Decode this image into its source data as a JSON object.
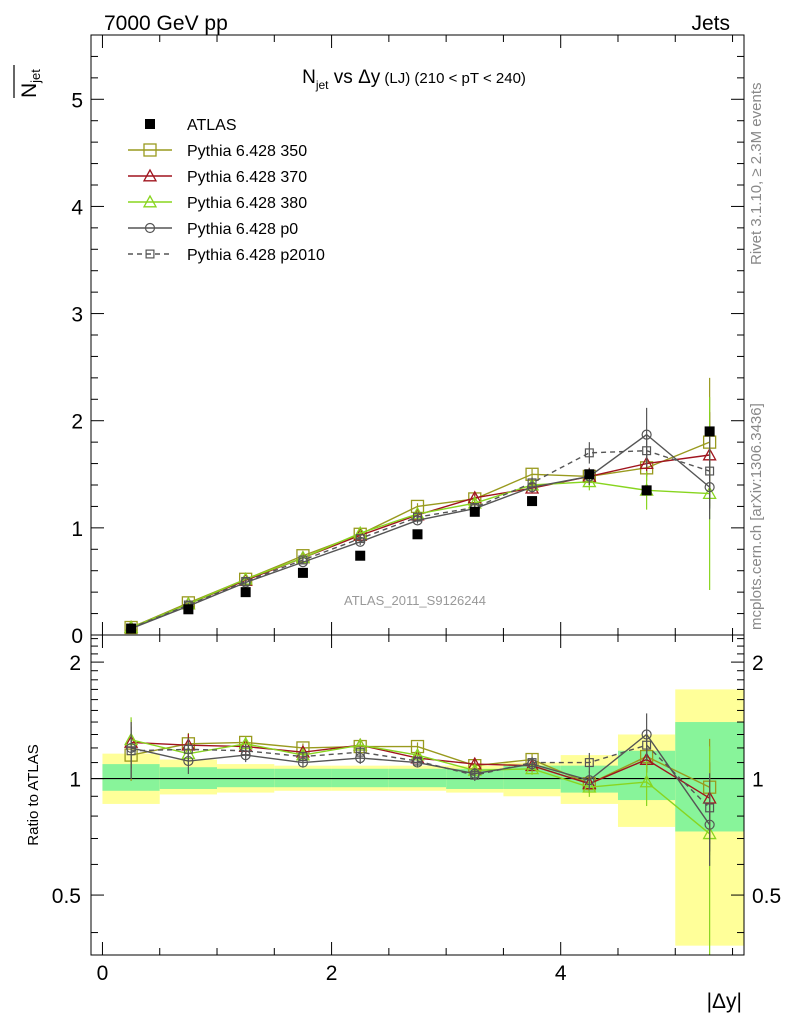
{
  "header": {
    "energy": "7000 GeV pp",
    "process": "Jets"
  },
  "side_labels": {
    "rivet": "Rivet 3.1.10, ≥ 2.3M events",
    "mcplots": "mcplots.cern.ch [arXiv:1306.3436]"
  },
  "chart_data": {
    "type": "scatter",
    "title_main": "N",
    "title_sub": "jet",
    "title_rest": " vs Δy",
    "title_lj": " (LJ)",
    "title_range": " (210 < pT < 240)",
    "analysis_id": "ATLAS_2011_S9126244",
    "ylabel_main": "N",
    "ylabel_sub": "jet",
    "xlabel": "|Δy|",
    "ratio_ylabel": "Ratio to ATLAS",
    "x": [
      0.25,
      0.75,
      1.25,
      1.75,
      2.25,
      2.75,
      3.25,
      3.75,
      4.25,
      4.75,
      5.3
    ],
    "x_edges": [
      0,
      0.5,
      1.0,
      1.5,
      2.0,
      2.5,
      3.0,
      3.5,
      4.0,
      4.5,
      5.0,
      5.6
    ],
    "xlim": [
      -0.1,
      5.6
    ],
    "ylim": [
      0,
      5.6
    ],
    "ratio_ylim": [
      0.35,
      2.35
    ],
    "x_ticks": [
      0,
      2,
      4
    ],
    "y_ticks": [
      1,
      2,
      3,
      4,
      5
    ],
    "y_ticks_extra": [
      0
    ],
    "ratio_ticks": [
      0.5,
      1,
      2
    ],
    "data": {
      "name": "ATLAS",
      "color": "#000000",
      "values": [
        0.06,
        0.24,
        0.4,
        0.58,
        0.74,
        0.94,
        1.15,
        1.25,
        1.5,
        1.35,
        1.9
      ]
    },
    "series": [
      {
        "name": "Pythia 6.428 350",
        "color": "#999a1e",
        "marker": "square",
        "dash": false,
        "values": [
          0.07,
          0.3,
          0.52,
          0.74,
          0.94,
          1.2,
          1.27,
          1.5,
          1.48,
          1.56,
          1.8
        ],
        "errors": [
          0.01,
          0.02,
          0.02,
          0.02,
          0.03,
          0.03,
          0.04,
          0.05,
          0.08,
          0.12,
          0.6
        ]
      },
      {
        "name": "Pythia 6.428 370",
        "color": "#a0141e",
        "marker": "triangle",
        "dash": false,
        "values": [
          0.07,
          0.29,
          0.51,
          0.72,
          0.93,
          1.12,
          1.28,
          1.37,
          1.48,
          1.6,
          1.68
        ],
        "errors": [
          0.01,
          0.02,
          0.02,
          0.02,
          0.03,
          0.03,
          0.04,
          0.05,
          0.08,
          0.12,
          0.4
        ]
      },
      {
        "name": "Pythia 6.428 380",
        "color": "#88d51f",
        "marker": "triangle",
        "dash": false,
        "values": [
          0.07,
          0.29,
          0.52,
          0.72,
          0.95,
          1.13,
          1.23,
          1.4,
          1.43,
          1.35,
          1.32
        ],
        "errors": [
          0.01,
          0.02,
          0.02,
          0.02,
          0.03,
          0.03,
          0.04,
          0.05,
          0.08,
          0.18,
          0.9
        ]
      },
      {
        "name": "Pythia 6.428 p0",
        "color": "#555555",
        "marker": "circle",
        "dash": false,
        "values": [
          0.06,
          0.27,
          0.49,
          0.68,
          0.87,
          1.07,
          1.18,
          1.38,
          1.48,
          1.87,
          1.38
        ],
        "errors": [
          0.01,
          0.02,
          0.02,
          0.02,
          0.03,
          0.03,
          0.04,
          0.05,
          0.08,
          0.25,
          0.3
        ]
      },
      {
        "name": "Pythia 6.428 p2010",
        "color": "#555555",
        "marker": "square-small",
        "dash": true,
        "values": [
          0.065,
          0.28,
          0.5,
          0.7,
          0.9,
          1.1,
          1.19,
          1.42,
          1.7,
          1.72,
          1.53
        ],
        "errors": [
          0.01,
          0.02,
          0.02,
          0.02,
          0.03,
          0.03,
          0.04,
          0.05,
          0.1,
          0.15,
          0.35
        ]
      }
    ],
    "ratio_series": [
      {
        "values": [
          1.15,
          1.23,
          1.24,
          1.2,
          1.21,
          1.21,
          1.08,
          1.12,
          0.97,
          1.14,
          0.95
        ]
      },
      {
        "values": [
          1.24,
          1.22,
          1.21,
          1.17,
          1.22,
          1.13,
          1.09,
          1.08,
          0.97,
          1.12,
          0.89
        ]
      },
      {
        "values": [
          1.26,
          1.16,
          1.23,
          1.15,
          1.22,
          1.15,
          1.05,
          1.06,
          0.95,
          0.98,
          0.72
        ]
      },
      {
        "values": [
          1.2,
          1.11,
          1.15,
          1.1,
          1.13,
          1.1,
          1.03,
          1.09,
          0.99,
          1.3,
          0.76
        ]
      },
      {
        "values": [
          1.18,
          1.19,
          1.18,
          1.14,
          1.17,
          1.11,
          1.02,
          1.1,
          1.1,
          1.22,
          0.84
        ]
      }
    ],
    "uncertainty_bands": {
      "inner_color": "#88f49a",
      "outer_color": "#ffff99",
      "inner": [
        [
          0.93,
          1.09
        ],
        [
          0.94,
          1.07
        ],
        [
          0.95,
          1.06
        ],
        [
          0.95,
          1.06
        ],
        [
          0.95,
          1.06
        ],
        [
          0.95,
          1.06
        ],
        [
          0.94,
          1.06
        ],
        [
          0.94,
          1.08
        ],
        [
          0.92,
          1.08
        ],
        [
          0.88,
          1.18
        ],
        [
          0.73,
          1.4
        ]
      ],
      "outer": [
        [
          0.86,
          1.16
        ],
        [
          0.91,
          1.12
        ],
        [
          0.92,
          1.09
        ],
        [
          0.93,
          1.08
        ],
        [
          0.93,
          1.08
        ],
        [
          0.93,
          1.08
        ],
        [
          0.92,
          1.08
        ],
        [
          0.9,
          1.1
        ],
        [
          0.86,
          1.15
        ],
        [
          0.75,
          1.3
        ],
        [
          0.37,
          1.7
        ]
      ]
    }
  }
}
